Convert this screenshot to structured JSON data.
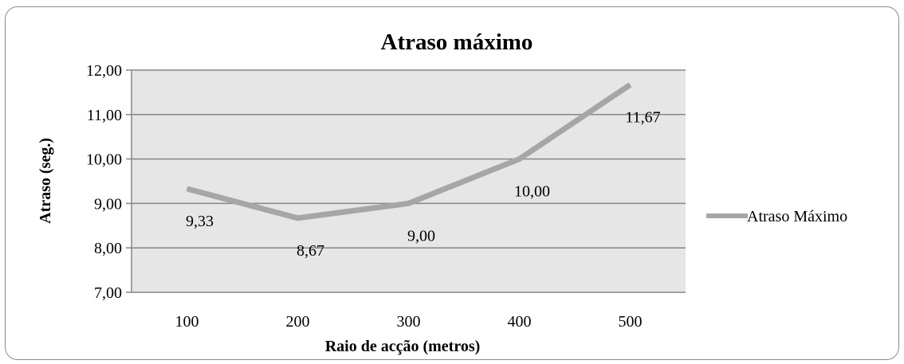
{
  "chart_data": {
    "type": "line",
    "title": "Atraso máximo",
    "xlabel": "Raio de acção (metros)",
    "ylabel": "Atraso (seg.)",
    "categories": [
      "100",
      "200",
      "300",
      "400",
      "500"
    ],
    "y_ticks": [
      "7,00",
      "8,00",
      "9,00",
      "10,00",
      "11,00",
      "12,00"
    ],
    "ylim": [
      7,
      12
    ],
    "grid": true,
    "legend_position": "right",
    "series": [
      {
        "name": "Atraso Máximo",
        "values": [
          9.33,
          8.67,
          9.0,
          10.0,
          11.67
        ],
        "labels": [
          "9,33",
          "8,67",
          "9,00",
          "10,00",
          "11,67"
        ],
        "color": "#a6a6a6"
      }
    ],
    "plot_background": "#e6e6e6",
    "gridline_color": "#868686"
  }
}
